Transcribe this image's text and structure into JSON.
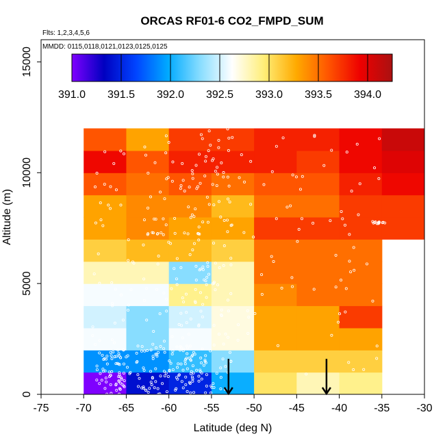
{
  "chart_data": {
    "type": "heatmap",
    "title": "ORCAS RF01-6 CO2_FMPD_SUM",
    "note_flights": "Flts: 1,2,3,4,5,6",
    "note_dates": "MMDD: 0115,0118,0121,0123,0125,0125",
    "xlabel": "Latitude (deg N)",
    "ylabel": "Altitude (m)",
    "xlim": [
      -75,
      -30
    ],
    "ylim": [
      0,
      16000
    ],
    "x_ticks": [
      -75,
      -70,
      -65,
      -60,
      -55,
      -50,
      -45,
      -40,
      -35,
      -30
    ],
    "x_tick_labels": [
      "-75",
      "-70",
      "-65",
      "-60",
      "-55",
      "-50",
      "-45",
      "-40",
      "-35",
      "-30"
    ],
    "y_ticks": [
      0,
      5000,
      10000,
      15000
    ],
    "y_tick_labels": [
      "0",
      "5000",
      "10000",
      "15000"
    ],
    "lat_bins": [
      -70,
      -65,
      -60,
      -55,
      -50,
      -45,
      -40,
      -35,
      -30
    ],
    "alt_bins": [
      0,
      1000,
      2000,
      3000,
      4000,
      5000,
      6000,
      7000,
      8000,
      9000,
      10000,
      11000,
      12000
    ],
    "values": [
      [
        391.0,
        391.4,
        391.5,
        392.0,
        393.0,
        392.8,
        392.9,
        null
      ],
      [
        391.9,
        391.9,
        392.1,
        392.3,
        393.1,
        393.1,
        393.1,
        null
      ],
      [
        392.6,
        392.3,
        392.6,
        392.7,
        393.3,
        393.3,
        393.3,
        null
      ],
      [
        392.5,
        392.3,
        392.5,
        392.7,
        393.3,
        393.3,
        393.7,
        null
      ],
      [
        392.6,
        392.6,
        392.9,
        392.8,
        393.4,
        393.5,
        393.5,
        null
      ],
      [
        392.8,
        392.8,
        392.3,
        392.8,
        393.5,
        393.5,
        393.5,
        null
      ],
      [
        393.1,
        393.2,
        393.2,
        393.1,
        393.5,
        393.5,
        393.5,
        null
      ],
      [
        393.3,
        393.4,
        393.3,
        393.3,
        393.7,
        393.7,
        393.7,
        393.7
      ],
      [
        393.3,
        393.4,
        393.4,
        393.2,
        393.5,
        393.5,
        393.7,
        393.7
      ],
      [
        393.6,
        393.5,
        393.6,
        393.5,
        393.6,
        393.6,
        393.8,
        393.9
      ],
      [
        393.9,
        393.6,
        393.8,
        393.8,
        393.8,
        393.7,
        393.9,
        394.0
      ],
      [
        393.6,
        393.3,
        393.7,
        393.7,
        393.8,
        393.8,
        393.9,
        394.1
      ]
    ],
    "colorbar": {
      "min": 391.0,
      "max": 394.25,
      "ticks": [
        391.0,
        391.5,
        392.0,
        392.5,
        393.0,
        393.5,
        394.0
      ],
      "tick_labels": [
        "391.0",
        "391.5",
        "392.0",
        "392.5",
        "393.0",
        "393.5",
        "394.0"
      ],
      "stops": [
        "#7f00ff",
        "#0000c0",
        "#0044ff",
        "#00aaff",
        "#88ddff",
        "#ffffff",
        "#ffee77",
        "#ffaa00",
        "#ff5500",
        "#ee0000",
        "#aa1111"
      ]
    },
    "arrows": [
      {
        "lat": -53.0,
        "alt": 500
      },
      {
        "lat": -41.5,
        "alt": 500
      }
    ],
    "samples": {
      "count": 520,
      "description": "white circle markers marking sample locations"
    }
  }
}
